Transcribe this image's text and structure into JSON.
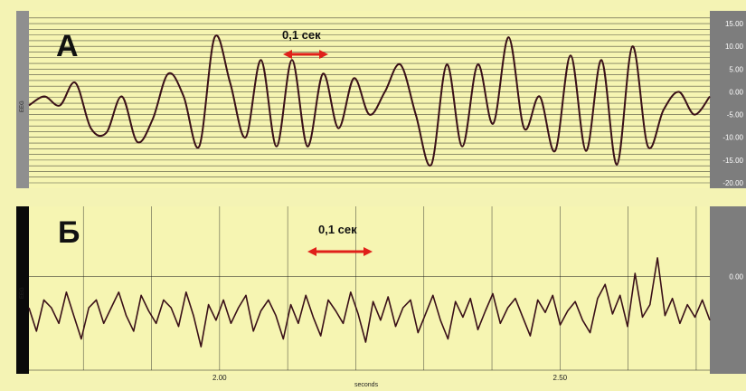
{
  "panels": {
    "a": {
      "letter": "А",
      "channel": "EEG",
      "scale_label": "0,1 сек"
    },
    "b": {
      "letter": "Б",
      "channel": "EEG",
      "scale_label": "0,1 сек"
    }
  },
  "x_units": "seconds",
  "colors": {
    "trace": "#3a1018",
    "arrow": "#e0201a",
    "grid": "#1a1a1a",
    "label": "#ffffff"
  },
  "chart_data": [
    {
      "type": "line",
      "title": "А",
      "xlabel": "",
      "ylabel": "EEG",
      "ylim": [
        -20,
        17
      ],
      "y_ticks": [
        "15.00",
        "10.00",
        "5.00",
        "0.00",
        "-5.00",
        "-10.00",
        "-15.00",
        "-20.00"
      ],
      "y_tick_values": [
        15,
        10,
        5,
        0,
        -5,
        -10,
        -15,
        -20
      ],
      "grid": true,
      "series": [
        {
          "values": [
            -3,
            -1,
            -3,
            2,
            -8,
            -9,
            -1,
            -11,
            -6,
            4,
            -1,
            -12,
            12,
            2,
            -10,
            7,
            -12,
            7,
            -12,
            4,
            -8,
            3,
            -5,
            0,
            6,
            -5,
            -16,
            6,
            -12,
            6,
            -7,
            12,
            -8,
            -1,
            -13,
            8,
            -13,
            7,
            -16,
            10,
            -12,
            -4,
            0,
            -5,
            -1
          ]
        }
      ]
    },
    {
      "type": "line",
      "title": "Б",
      "xlabel": "seconds",
      "ylabel": "EEG",
      "xlim": [
        1.72,
        2.72
      ],
      "x_ticks": [
        "2.00",
        "2.50"
      ],
      "x_tick_values": [
        2.0,
        2.5
      ],
      "y_ticks": [
        "0.00"
      ],
      "y_tick_values": [
        0
      ],
      "ylim": [
        -6,
        4.5
      ],
      "grid": true,
      "series": [
        {
          "values": [
            -2,
            -3.5,
            -1.5,
            -2,
            -3,
            -1,
            -2.5,
            -4,
            -2,
            -1.5,
            -3,
            -2,
            -1,
            -2.5,
            -3.5,
            -1.2,
            -2.2,
            -3,
            -1.5,
            -2,
            -3.2,
            -1,
            -2.5,
            -4.5,
            -1.8,
            -2.8,
            -1.5,
            -3,
            -2,
            -1.2,
            -3.5,
            -2.2,
            -1.5,
            -2.5,
            -4,
            -1.8,
            -3,
            -1.2,
            -2.6,
            -3.8,
            -1.5,
            -2.2,
            -3,
            -1,
            -2.4,
            -4.2,
            -1.6,
            -2.8,
            -1.3,
            -3.2,
            -2,
            -1.5,
            -3.6,
            -2.4,
            -1.2,
            -2.8,
            -4,
            -1.6,
            -2.6,
            -1.4,
            -3.4,
            -2.2,
            -1.1,
            -3,
            -2,
            -1.4,
            -2.6,
            -3.8,
            -1.5,
            -2.3,
            -1.2,
            -3.1,
            -2.2,
            -1.6,
            -2.8,
            -3.6,
            -1.4,
            -0.5,
            -2.4,
            -1.2,
            -3.2,
            0.2,
            -2.6,
            -1.8,
            1.2,
            -2.5,
            -1.4,
            -3,
            -1.8,
            -2.6,
            -1.5,
            -2.8
          ]
        }
      ]
    }
  ]
}
